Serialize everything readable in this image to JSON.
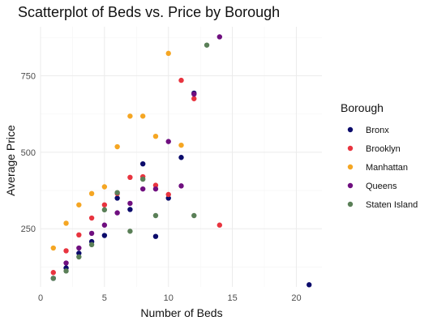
{
  "chart_data": {
    "type": "scatter",
    "title": "Scatterplot of Beds vs. Price by Borough",
    "xlabel": "Number of Beds",
    "ylabel": "Average Price",
    "xlim": [
      0,
      22
    ],
    "ylim": [
      60,
      910
    ],
    "x_ticks": [
      0,
      5,
      10,
      15,
      20
    ],
    "y_ticks": [
      250,
      500,
      750
    ],
    "grid": true,
    "legend": {
      "title": "Borough",
      "position": "right"
    },
    "series": [
      {
        "name": "Bronx",
        "color": "#0b0b6b",
        "points": [
          [
            1,
            88
          ],
          [
            2,
            122
          ],
          [
            3,
            170
          ],
          [
            4,
            208
          ],
          [
            5,
            228
          ],
          [
            6,
            350
          ],
          [
            7,
            313
          ],
          [
            8,
            462
          ],
          [
            9,
            225
          ],
          [
            10,
            350
          ],
          [
            11,
            483
          ],
          [
            12,
            693
          ],
          [
            21,
            67
          ]
        ]
      },
      {
        "name": "Brooklyn",
        "color": "#e8343f",
        "points": [
          [
            1,
            107
          ],
          [
            2,
            178
          ],
          [
            3,
            230
          ],
          [
            4,
            285
          ],
          [
            5,
            328
          ],
          [
            6,
            365
          ],
          [
            7,
            418
          ],
          [
            8,
            420
          ],
          [
            9,
            392
          ],
          [
            10,
            362
          ],
          [
            11,
            735
          ],
          [
            12,
            675
          ],
          [
            14,
            262
          ]
        ]
      },
      {
        "name": "Manhattan",
        "color": "#f5a623",
        "points": [
          [
            1,
            187
          ],
          [
            2,
            268
          ],
          [
            3,
            328
          ],
          [
            4,
            365
          ],
          [
            5,
            387
          ],
          [
            6,
            518
          ],
          [
            7,
            618
          ],
          [
            8,
            618
          ],
          [
            9,
            552
          ],
          [
            10,
            823
          ],
          [
            11,
            523
          ]
        ]
      },
      {
        "name": "Queens",
        "color": "#6f0f7f",
        "points": [
          [
            2,
            138
          ],
          [
            3,
            187
          ],
          [
            4,
            235
          ],
          [
            5,
            262
          ],
          [
            6,
            302
          ],
          [
            7,
            333
          ],
          [
            8,
            380
          ],
          [
            9,
            380
          ],
          [
            10,
            535
          ],
          [
            11,
            390
          ],
          [
            12,
            690
          ],
          [
            14,
            877
          ]
        ]
      },
      {
        "name": "Staten Island",
        "color": "#5a7f57",
        "points": [
          [
            1,
            88
          ],
          [
            2,
            112
          ],
          [
            3,
            158
          ],
          [
            4,
            198
          ],
          [
            5,
            312
          ],
          [
            6,
            368
          ],
          [
            7,
            242
          ],
          [
            8,
            412
          ],
          [
            9,
            293
          ],
          [
            12,
            293
          ],
          [
            13,
            850
          ]
        ]
      }
    ]
  }
}
